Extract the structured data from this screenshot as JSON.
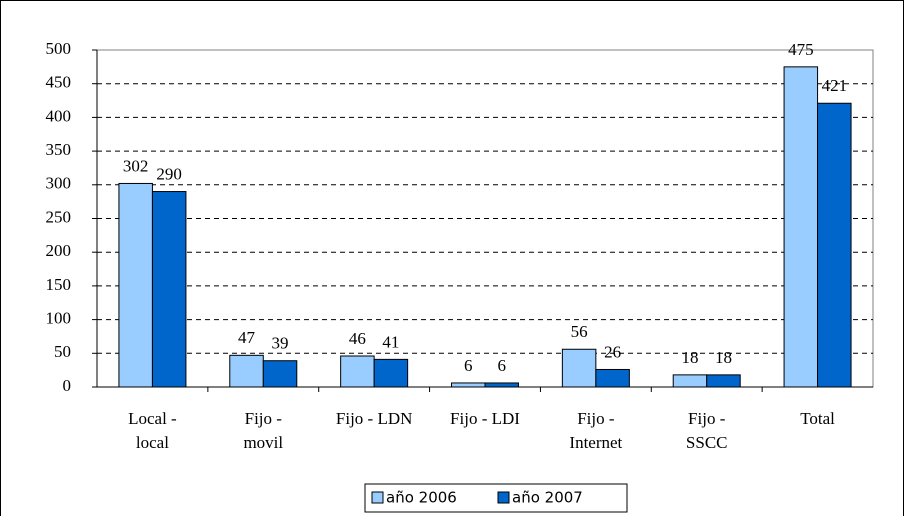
{
  "chart_data": {
    "type": "bar",
    "categories": [
      "Local -\nlocal",
      "Fijo -\nmovil",
      "Fijo - LDN",
      "Fijo - LDI",
      "Fijo -\nInternet",
      "Fijo -\nSSCC",
      "Total"
    ],
    "series": [
      {
        "name": "año 2006",
        "color": "#99ccff",
        "values": [
          302,
          47,
          46,
          6,
          56,
          18,
          475
        ]
      },
      {
        "name": "año 2007",
        "color": "#0066cc",
        "values": [
          290,
          39,
          41,
          6,
          26,
          18,
          421
        ]
      }
    ],
    "ylim": [
      0,
      500
    ],
    "yticks": [
      0,
      50,
      100,
      150,
      200,
      250,
      300,
      350,
      400,
      450,
      500
    ],
    "grid": true,
    "legend": "bottom"
  }
}
